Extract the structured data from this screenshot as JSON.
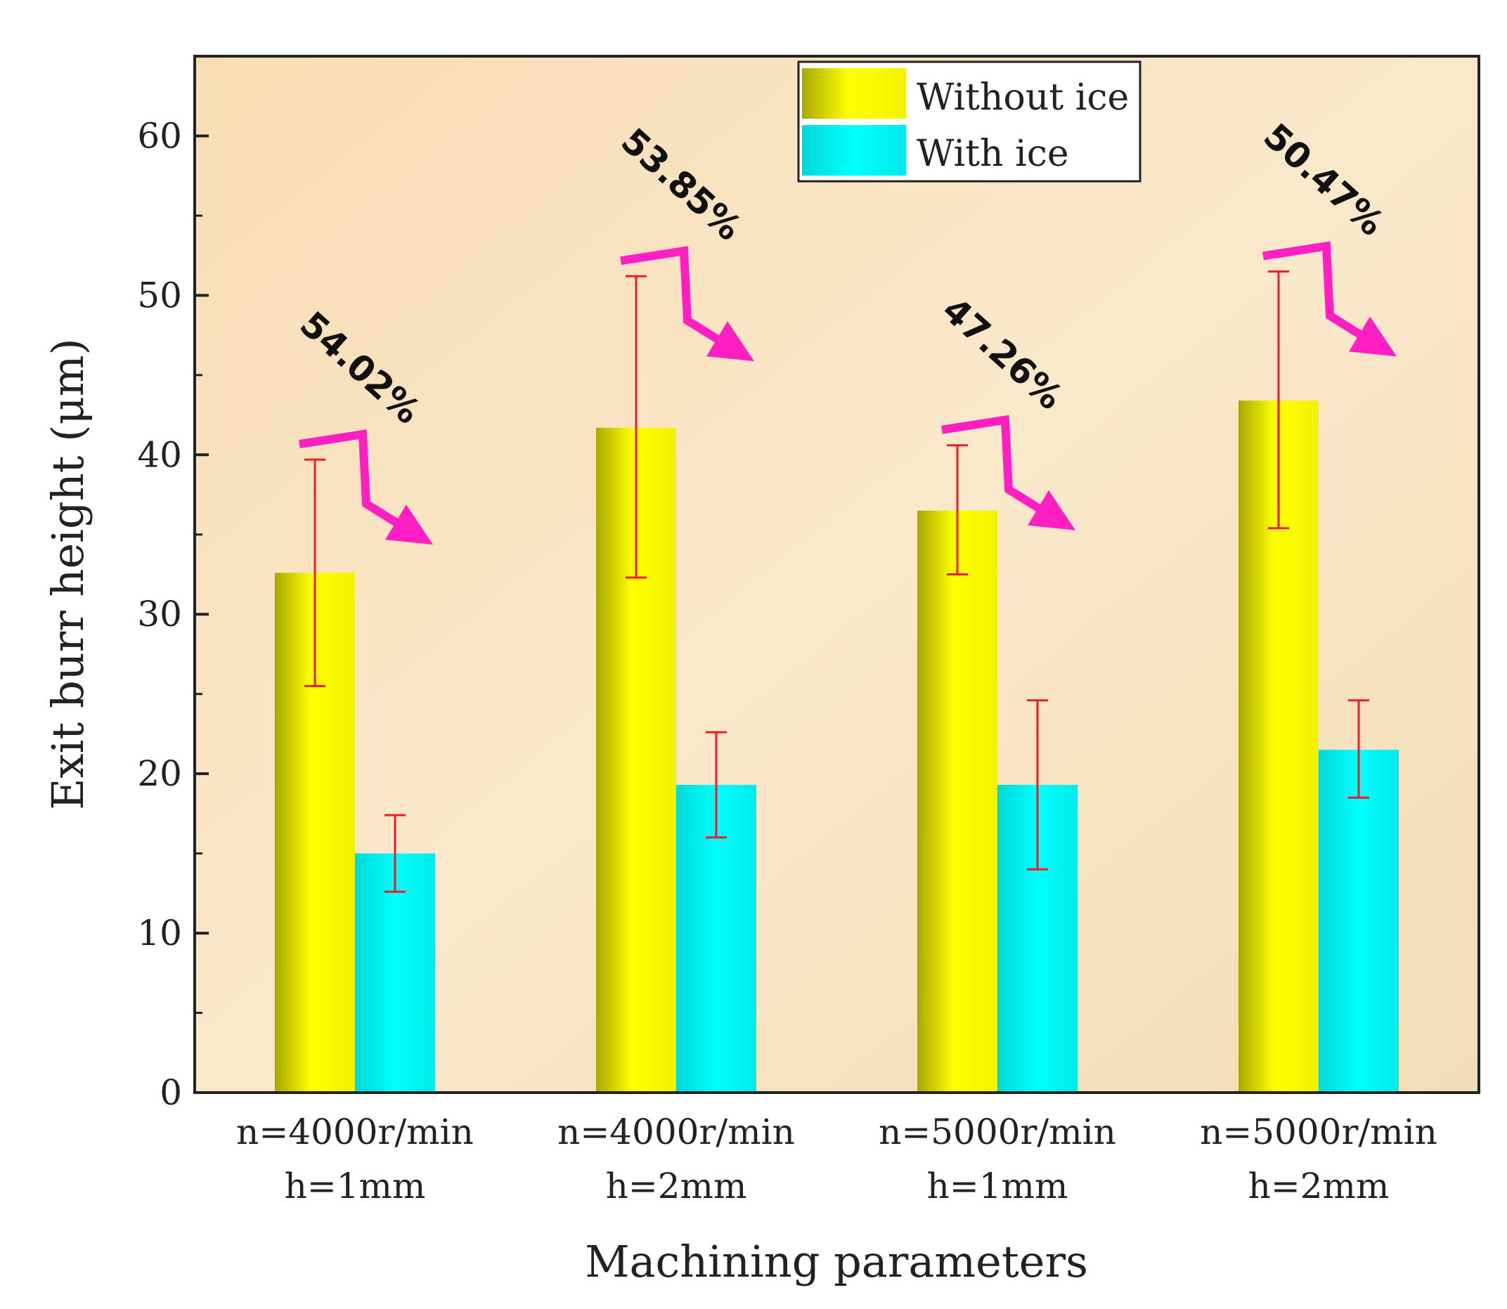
{
  "chart_data": {
    "type": "bar",
    "title": "",
    "xlabel": "Machining parameters",
    "ylabel": "Exit burr height (μm)",
    "ylim": [
      0,
      65
    ],
    "yticks": [
      0,
      10,
      20,
      30,
      40,
      50,
      60
    ],
    "categories": [
      [
        "n=4000r/min",
        "h=1mm"
      ],
      [
        "n=4000r/min",
        "h=2mm"
      ],
      [
        "n=5000r/min",
        "h=1mm"
      ],
      [
        "n=5000r/min",
        "h=2mm"
      ]
    ],
    "series": [
      {
        "name": "Without ice",
        "color": "#ffff00",
        "values": [
          32.6,
          41.7,
          36.5,
          43.4
        ],
        "error_low": [
          25.5,
          32.3,
          32.5,
          35.4
        ],
        "error_high": [
          39.7,
          51.2,
          40.6,
          51.5
        ]
      },
      {
        "name": "With ice",
        "color": "#00f2f2",
        "values": [
          15.0,
          19.3,
          19.3,
          21.5
        ],
        "error_low": [
          12.6,
          16.0,
          14.0,
          18.5
        ],
        "error_high": [
          17.4,
          22.6,
          24.6,
          24.6
        ]
      }
    ],
    "annotations": [
      "54.02%",
      "53.85%",
      "47.26%",
      "50.47%"
    ],
    "legend_position": "top-right",
    "colors": {
      "plot_background": "#f9e6c6",
      "error_bar": "#ee1c25",
      "arrow": "#ff1fc2"
    }
  }
}
